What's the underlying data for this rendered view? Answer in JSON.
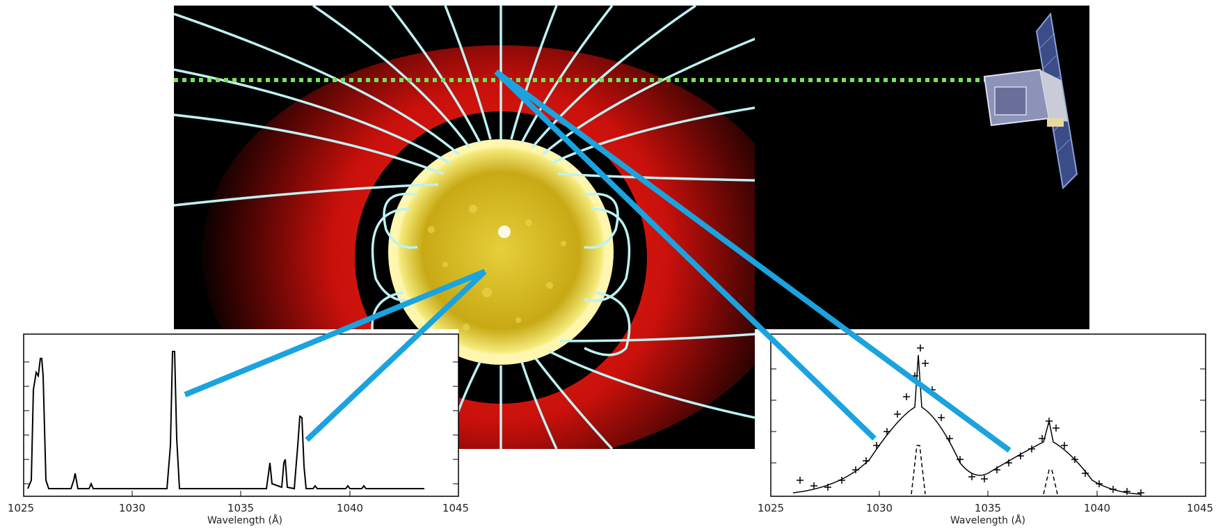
{
  "colors": {
    "field_lines": "#bdf2f4",
    "pointer_lines": "#1aa3df",
    "horizon_line": "#78e25a",
    "corona_red": "#e01818",
    "sun_yellow": "#d9c21a"
  },
  "left_plot": {
    "xlabel": "Wavelength (Å)",
    "xticks": [
      "1025",
      "1030",
      "1035",
      "1040",
      "1045"
    ]
  },
  "right_plot": {
    "xlabel": "Wavelength (Å)",
    "xticks": [
      "1025",
      "1030",
      "1035",
      "1040",
      "1045"
    ]
  },
  "icons": {
    "spacecraft": "satellite-icon",
    "sun": "sun-icon"
  }
}
